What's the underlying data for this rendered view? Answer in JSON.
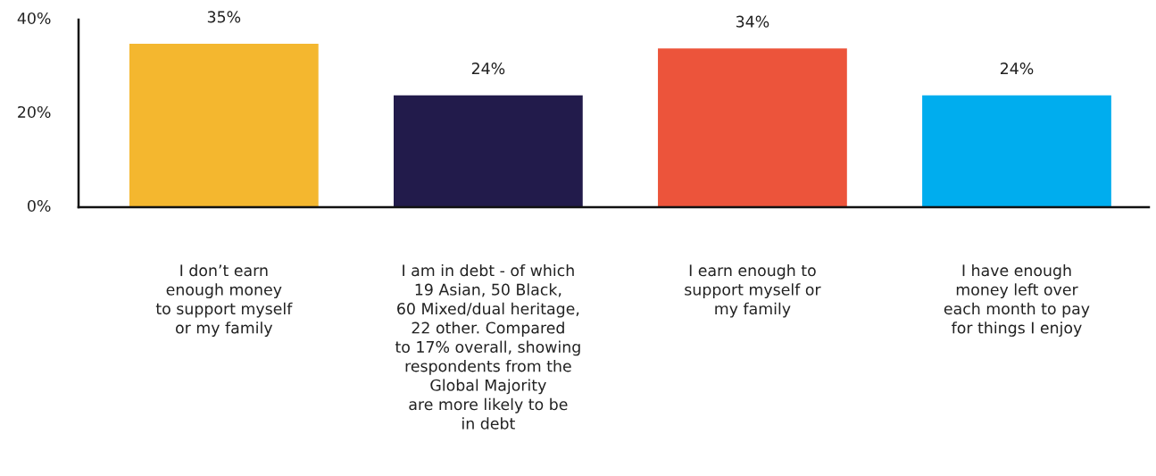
{
  "chart_data": {
    "type": "bar",
    "categories": [
      "I don’t earn\nenough money\nto support myself\nor my family",
      "I am in debt - of which\n19 Asian, 50 Black,\n60 Mixed/dual heritage,\n22 other. Compared\nto 17% overall, showing\nrespondents from the\nGlobal Majority\nare more likely to be\nin debt",
      "I earn enough to\nsupport myself or\nmy family",
      "I have enough\nmoney left over\neach month to pay\nfor things I enjoy"
    ],
    "values": [
      35,
      24,
      34,
      24
    ],
    "value_labels": [
      "35%",
      "24%",
      "34%",
      "24%"
    ],
    "colors": [
      "#f4b72f",
      "#221b4b",
      "#ec543b",
      "#00adee"
    ],
    "ylim": [
      0,
      40
    ],
    "yticks": [
      {
        "value": 0,
        "label": "0%"
      },
      {
        "value": 20,
        "label": "20%"
      },
      {
        "value": 40,
        "label": "40%"
      }
    ],
    "grid": false
  }
}
